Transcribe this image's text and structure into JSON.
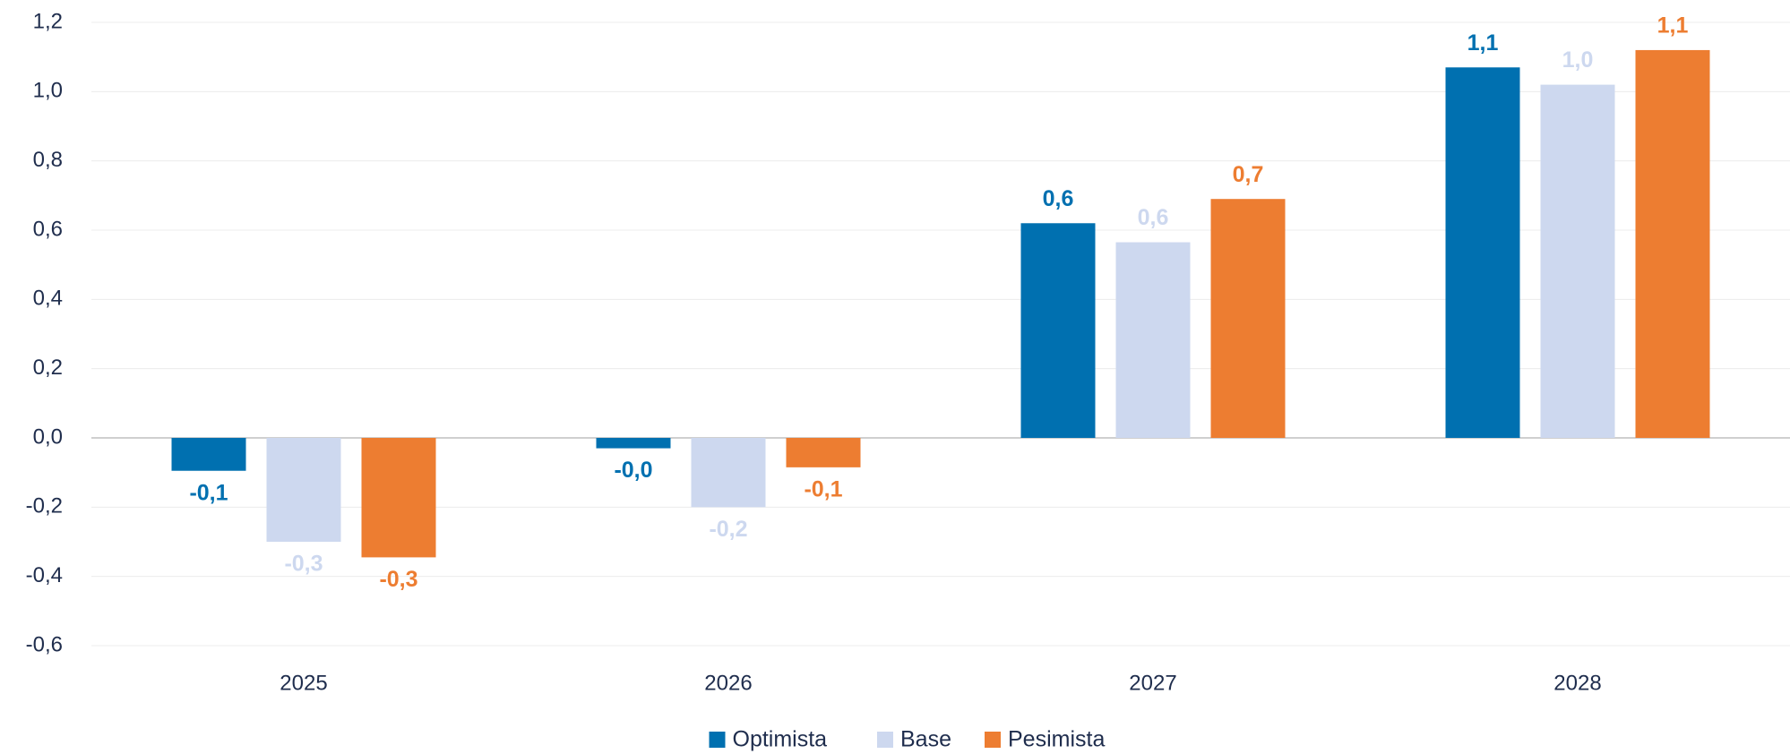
{
  "chart_data": {
    "type": "bar",
    "categories": [
      "2025",
      "2026",
      "2027",
      "2028"
    ],
    "series": [
      {
        "name": "Optimista",
        "color": "#0070b0",
        "values": [
          -0.095,
          -0.03,
          0.62,
          1.07
        ],
        "value_labels": [
          "-0,1",
          "-0,0",
          "0,6",
          "1,1"
        ]
      },
      {
        "name": "Base",
        "color": "#cdd8ef",
        "values": [
          -0.3,
          -0.2,
          0.565,
          1.02
        ],
        "value_labels": [
          "-0,3",
          "-0,2",
          "0,6",
          "1,0"
        ]
      },
      {
        "name": "Pesimista",
        "color": "#ed7d31",
        "values": [
          -0.345,
          -0.085,
          0.69,
          1.12
        ],
        "value_labels": [
          "-0,3",
          "-0,1",
          "0,7",
          "1,1"
        ]
      }
    ],
    "ylim": [
      -0.6,
      1.2
    ],
    "yticks": [
      {
        "value": -0.6,
        "label": "-0,6"
      },
      {
        "value": -0.4,
        "label": "-0,4"
      },
      {
        "value": -0.2,
        "label": "-0,2"
      },
      {
        "value": 0,
        "label": "0,0"
      },
      {
        "value": 0.2,
        "label": "0,2"
      },
      {
        "value": 0.4,
        "label": "0,4"
      },
      {
        "value": 0.6,
        "label": "0,6"
      },
      {
        "value": 0.8,
        "label": "0,8"
      },
      {
        "value": 1.0,
        "label": "1,0"
      },
      {
        "value": 1.2,
        "label": "1,2"
      }
    ],
    "grid": true,
    "legend": "bottom"
  }
}
